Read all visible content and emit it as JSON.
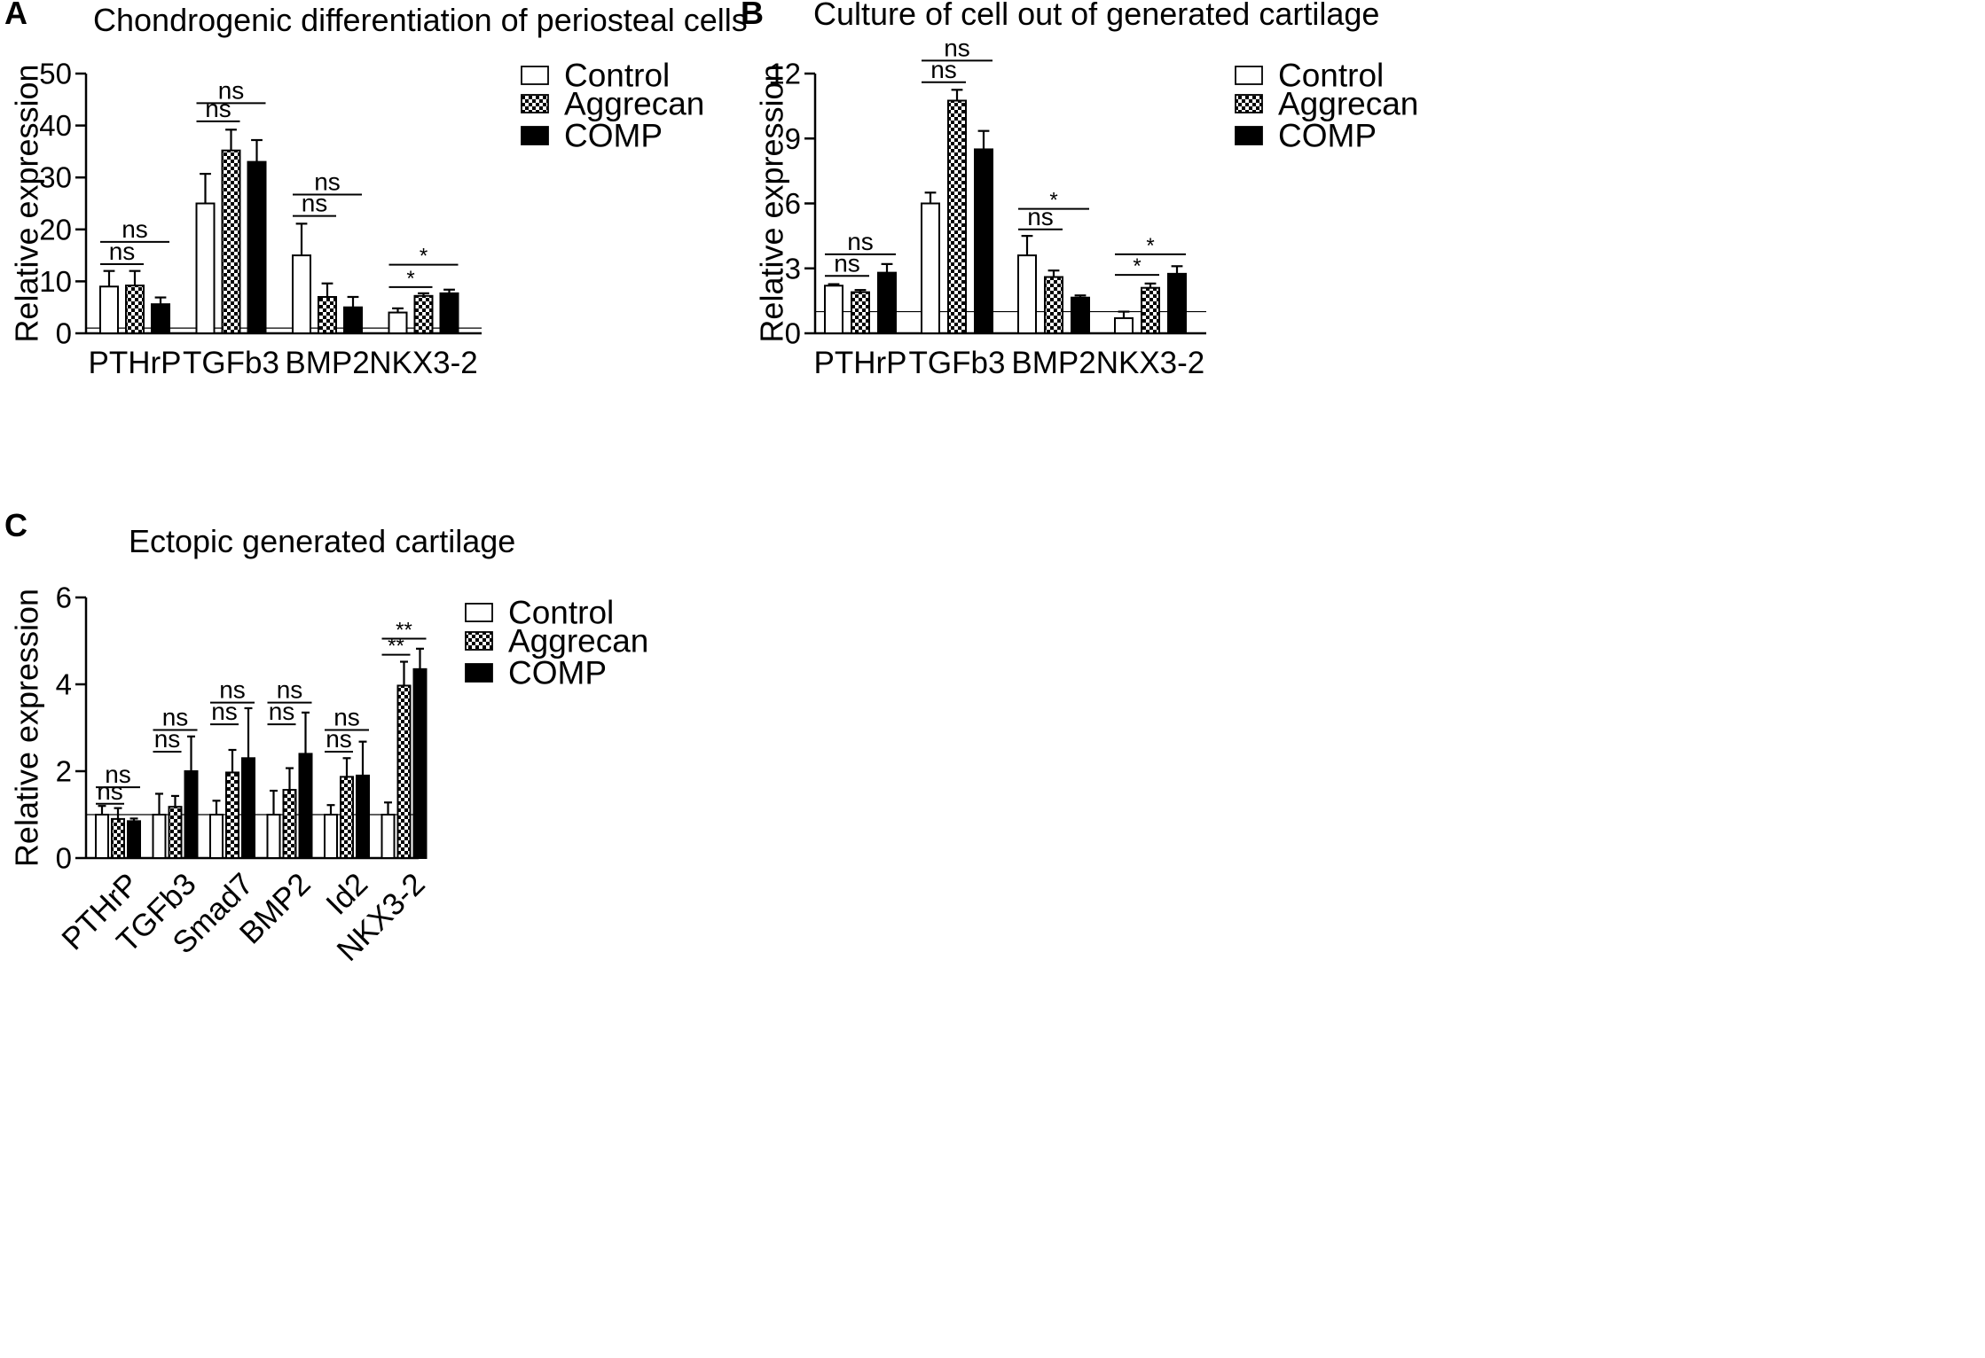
{
  "colors": {
    "axis": "#000000",
    "control_fill": "#ffffff",
    "comp_fill": "#000000"
  },
  "legend_labels": [
    "Control",
    "Aggrecan",
    "COMP"
  ],
  "chart_data": [
    {
      "id": "A",
      "type": "bar",
      "panel_letter": "A",
      "title": "Chondrogenic differentiation of periosteal cells",
      "ylabel": "Relative expression",
      "xlabel": "",
      "ylim": [
        0,
        50
      ],
      "yticks": [
        0,
        10,
        20,
        30,
        40,
        50
      ],
      "baseline": 1,
      "categories": [
        "PTHrP",
        "TGFb3",
        "BMP2",
        "NKX3-2"
      ],
      "series": [
        {
          "name": "Control",
          "values": [
            9,
            25,
            15,
            4
          ],
          "errors": [
            3,
            5.7,
            6.1,
            0.8
          ]
        },
        {
          "name": "Aggrecan",
          "values": [
            9.2,
            35.2,
            7,
            7.2
          ],
          "errors": [
            2.8,
            4,
            2.6,
            0.5
          ]
        },
        {
          "name": "COMP",
          "values": [
            5.6,
            33,
            5,
            7.7
          ],
          "errors": [
            1.3,
            4.2,
            2,
            0.7
          ]
        }
      ],
      "significance": [
        {
          "category": 0,
          "from": 0,
          "to": 1,
          "label": "ns",
          "y": 13.3
        },
        {
          "category": 0,
          "from": 0,
          "to": 2,
          "label": "ns",
          "y": 17.6
        },
        {
          "category": 1,
          "from": 0,
          "to": 1,
          "label": "ns",
          "y": 40.8
        },
        {
          "category": 1,
          "from": 0,
          "to": 2,
          "label": "ns",
          "y": 44.3
        },
        {
          "category": 2,
          "from": 0,
          "to": 1,
          "label": "ns",
          "y": 22.6
        },
        {
          "category": 2,
          "from": 0,
          "to": 2,
          "label": "ns",
          "y": 26.7
        },
        {
          "category": 3,
          "from": 0,
          "to": 1,
          "label": "*",
          "y": 8.9
        },
        {
          "category": 3,
          "from": 0,
          "to": 2,
          "label": "*",
          "y": 13.2
        }
      ]
    },
    {
      "id": "B",
      "type": "bar",
      "panel_letter": "B",
      "title": "Culture of cell out of generated cartilage",
      "ylabel": "Relative expression",
      "xlabel": "",
      "ylim": [
        0,
        12
      ],
      "yticks": [
        0,
        3,
        6,
        9,
        12
      ],
      "baseline": 1,
      "categories": [
        "PTHrP",
        "TGFb3",
        "BMP2",
        "NKX3-2"
      ],
      "series": [
        {
          "name": "Control",
          "values": [
            2.2,
            6,
            3.6,
            0.7
          ],
          "errors": [
            0.07,
            0.5,
            0.9,
            0.3
          ]
        },
        {
          "name": "Aggrecan",
          "values": [
            1.9,
            10.75,
            2.6,
            2.1
          ],
          "errors": [
            0.1,
            0.5,
            0.3,
            0.2
          ]
        },
        {
          "name": "COMP",
          "values": [
            2.8,
            8.5,
            1.65,
            2.75
          ],
          "errors": [
            0.4,
            0.85,
            0.1,
            0.35
          ]
        }
      ],
      "significance": [
        {
          "category": 0,
          "from": 0,
          "to": 1,
          "label": "ns",
          "y": 2.65
        },
        {
          "category": 0,
          "from": 0,
          "to": 2,
          "label": "ns",
          "y": 3.65
        },
        {
          "category": 1,
          "from": 0,
          "to": 1,
          "label": "ns",
          "y": 11.6
        },
        {
          "category": 1,
          "from": 0,
          "to": 2,
          "label": "ns",
          "y": 12.6
        },
        {
          "category": 2,
          "from": 0,
          "to": 1,
          "label": "ns",
          "y": 4.8
        },
        {
          "category": 2,
          "from": 0,
          "to": 2,
          "label": "*",
          "y": 5.75
        },
        {
          "category": 3,
          "from": 0,
          "to": 1,
          "label": "*",
          "y": 2.7
        },
        {
          "category": 3,
          "from": 0,
          "to": 2,
          "label": "*",
          "y": 3.65
        }
      ]
    },
    {
      "id": "C",
      "type": "bar",
      "panel_letter": "C",
      "title": "Ectopic generated cartilage",
      "ylabel": "Relative expression",
      "xlabel": "",
      "ylim": [
        0,
        6
      ],
      "yticks": [
        0,
        2,
        4,
        6
      ],
      "baseline": 1,
      "categories": [
        "PTHrP",
        "TGFb3",
        "Smad7",
        "BMP2",
        "Id2",
        "NKX3-2"
      ],
      "series": [
        {
          "name": "Control",
          "values": [
            1,
            1,
            1,
            1,
            1,
            1
          ],
          "errors": [
            0.2,
            0.48,
            0.32,
            0.55,
            0.22,
            0.28
          ]
        },
        {
          "name": "Aggrecan",
          "values": [
            0.9,
            1.18,
            1.97,
            1.57,
            1.87,
            3.97
          ],
          "errors": [
            0.25,
            0.25,
            0.52,
            0.5,
            0.43,
            0.55
          ]
        },
        {
          "name": "COMP",
          "values": [
            0.85,
            2.0,
            2.3,
            2.4,
            1.9,
            4.35
          ],
          "errors": [
            0.06,
            0.8,
            1.15,
            0.95,
            0.78,
            0.47
          ]
        }
      ],
      "significance": [
        {
          "category": 0,
          "from": 0,
          "to": 1,
          "label": "ns",
          "y": 1.25
        },
        {
          "category": 0,
          "from": 0,
          "to": 2,
          "label": "ns",
          "y": 1.63
        },
        {
          "category": 1,
          "from": 0,
          "to": 1,
          "label": "ns",
          "y": 2.45
        },
        {
          "category": 1,
          "from": 0,
          "to": 2,
          "label": "ns",
          "y": 2.95
        },
        {
          "category": 2,
          "from": 0,
          "to": 1,
          "label": "ns",
          "y": 3.08
        },
        {
          "category": 2,
          "from": 0,
          "to": 2,
          "label": "ns",
          "y": 3.58
        },
        {
          "category": 3,
          "from": 0,
          "to": 1,
          "label": "ns",
          "y": 3.08
        },
        {
          "category": 3,
          "from": 0,
          "to": 2,
          "label": "ns",
          "y": 3.58
        },
        {
          "category": 4,
          "from": 0,
          "to": 1,
          "label": "ns",
          "y": 2.45
        },
        {
          "category": 4,
          "from": 0,
          "to": 2,
          "label": "ns",
          "y": 2.95
        },
        {
          "category": 5,
          "from": 0,
          "to": 1,
          "label": "**",
          "y": 4.68
        },
        {
          "category": 5,
          "from": 0,
          "to": 2,
          "label": "**",
          "y": 5.05
        }
      ]
    }
  ]
}
